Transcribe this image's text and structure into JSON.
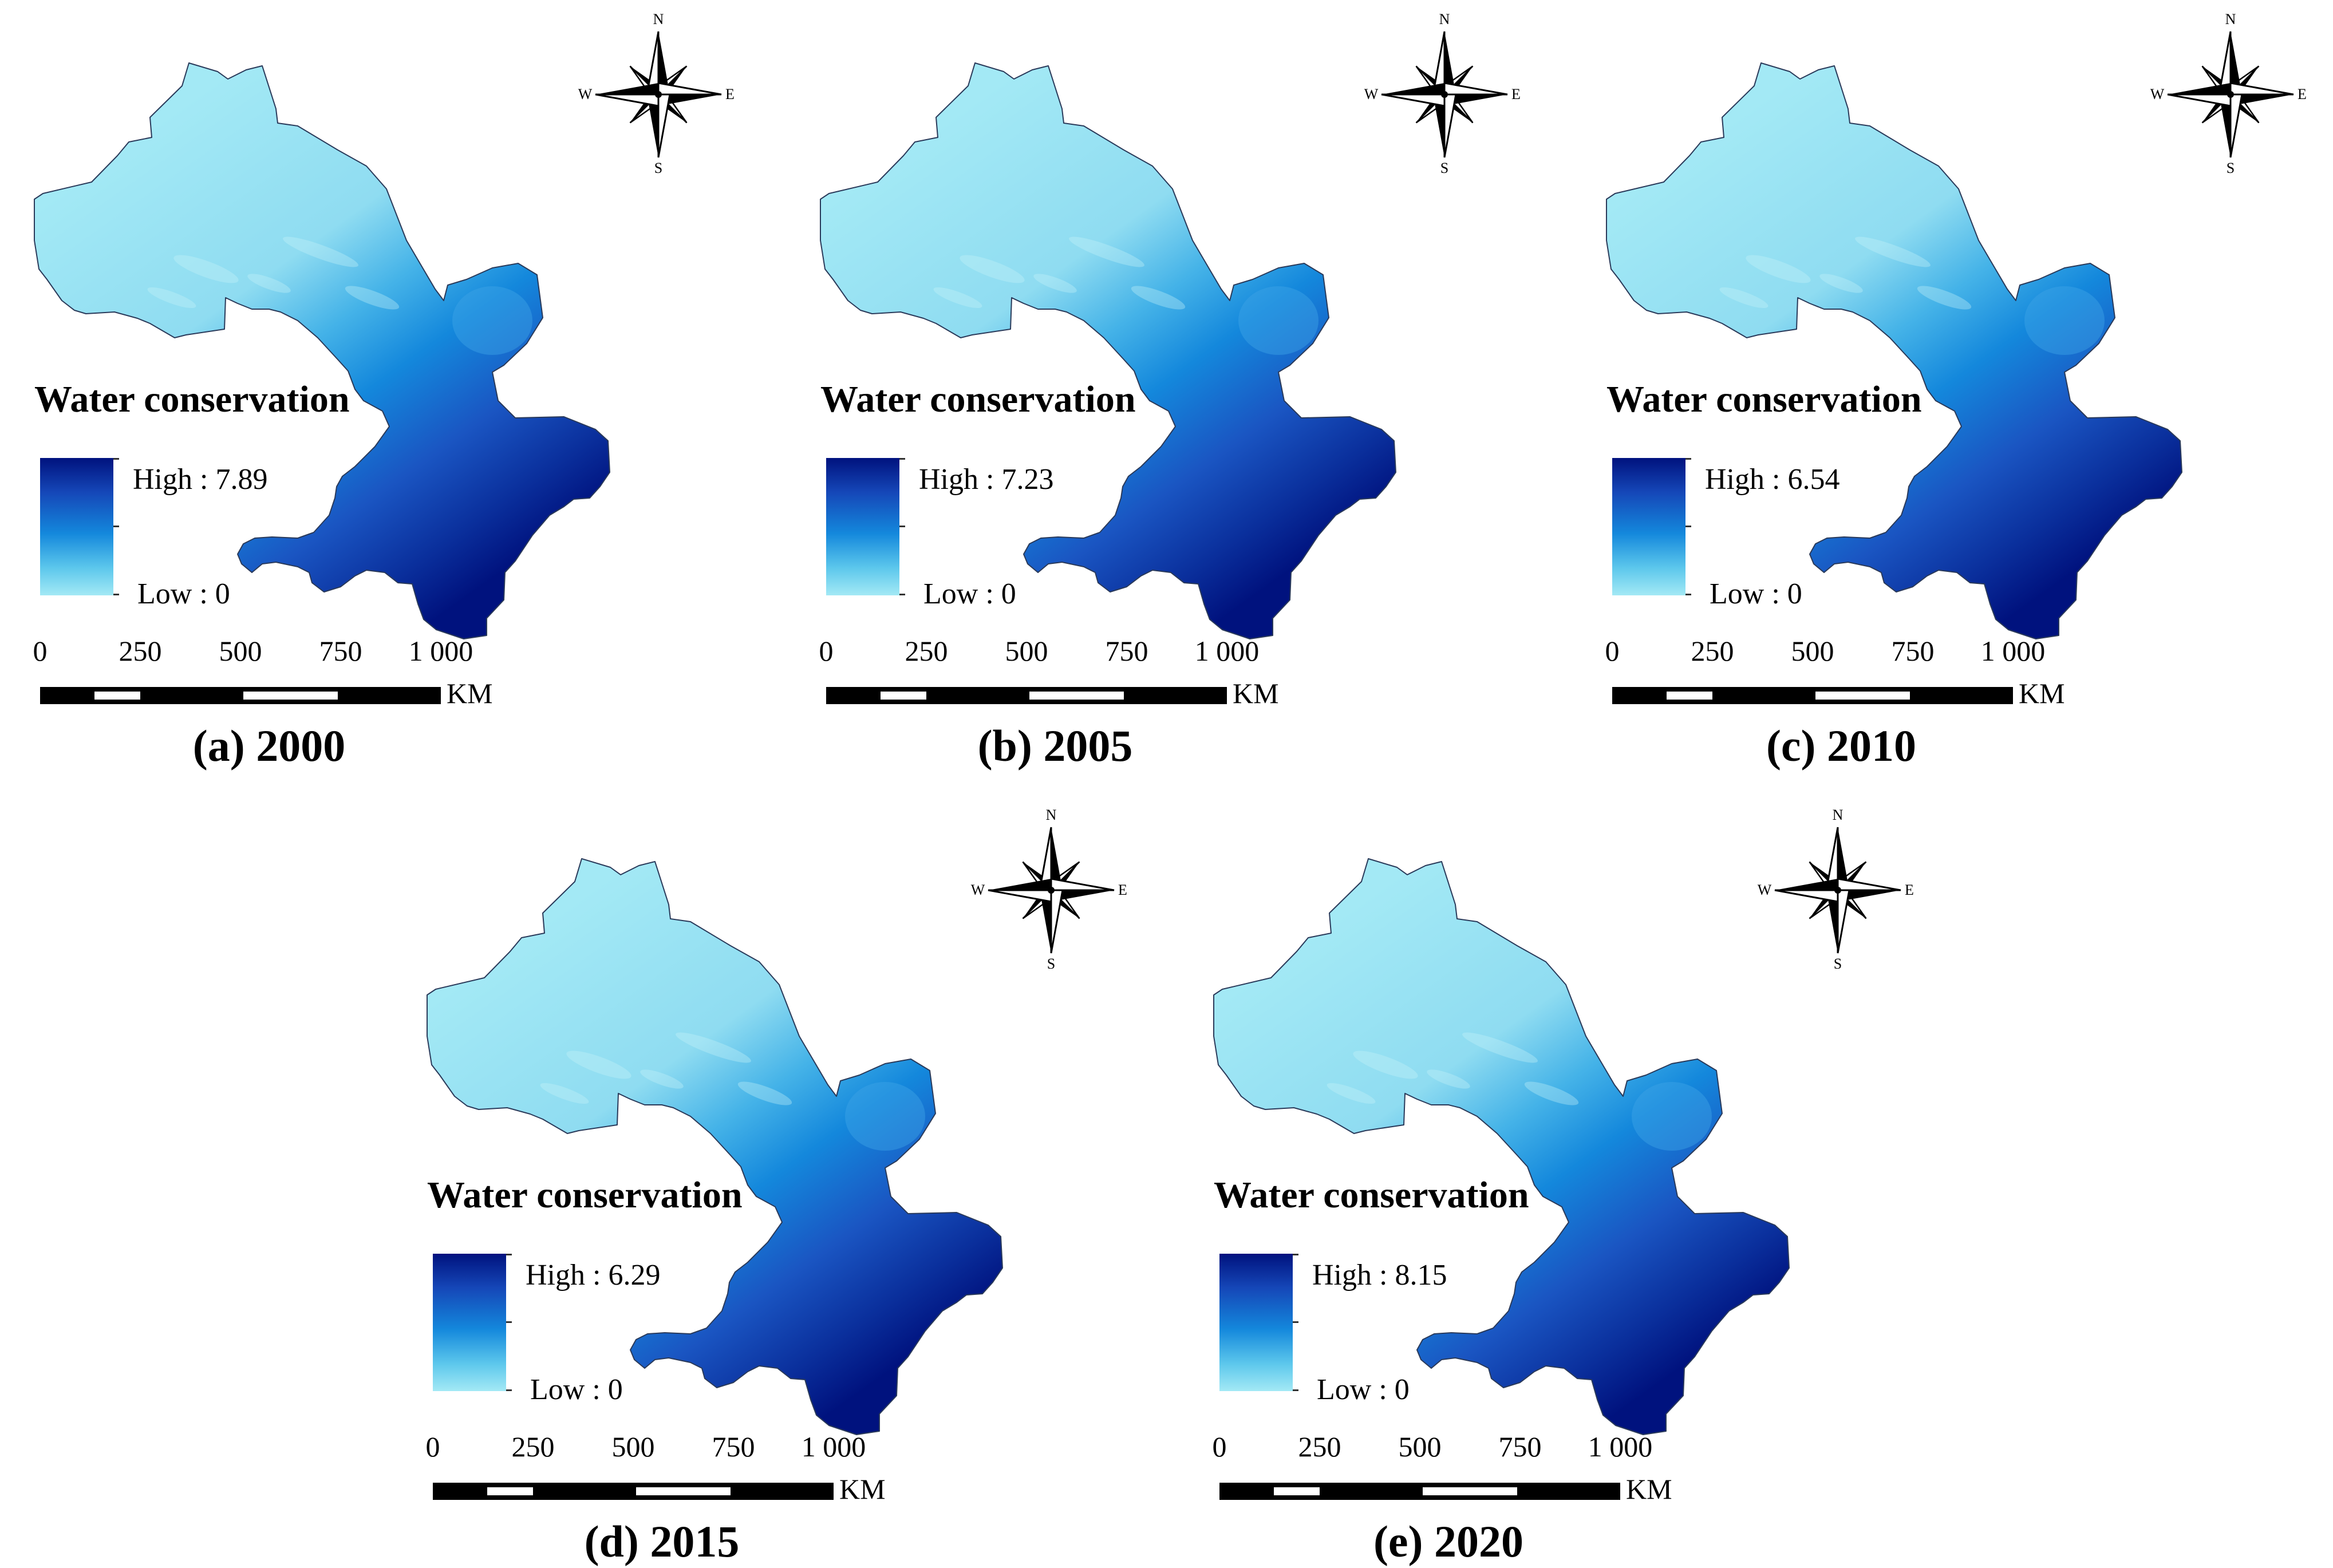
{
  "panels": [
    {
      "id": "a",
      "caption": "(a) 2000",
      "legend_title": "Water conservation",
      "high": "High : 7.89",
      "low": "Low : 0",
      "high_value": 7.89,
      "low_value": 0
    },
    {
      "id": "b",
      "caption": "(b) 2005",
      "legend_title": "Water conservation",
      "high": "High : 7.23",
      "low": "Low : 0",
      "high_value": 7.23,
      "low_value": 0
    },
    {
      "id": "c",
      "caption": "(c) 2010",
      "legend_title": "Water conservation",
      "high": "High : 6.54",
      "low": "Low : 0",
      "high_value": 6.54,
      "low_value": 0
    },
    {
      "id": "d",
      "caption": "(d) 2015",
      "legend_title": "Water conservation",
      "high": "High : 6.29",
      "low": "Low : 0",
      "high_value": 6.29,
      "low_value": 0
    },
    {
      "id": "e",
      "caption": "(e) 2020",
      "legend_title": "Water conservation",
      "high": "High : 8.15",
      "low": "Low : 0",
      "high_value": 8.15,
      "low_value": 0
    }
  ],
  "scale": {
    "labels": [
      "0",
      "250",
      "500",
      "750",
      "1 000"
    ],
    "unit": "KM"
  },
  "compass": {
    "n": "N",
    "s": "S",
    "e": "E",
    "w": "W",
    "icon": "north-arrow-compass-rose-icon"
  },
  "colors": {
    "high": "#00127e",
    "mid": "#1488dc",
    "low": "#a3e9f5",
    "scale_fill": "#000000"
  }
}
